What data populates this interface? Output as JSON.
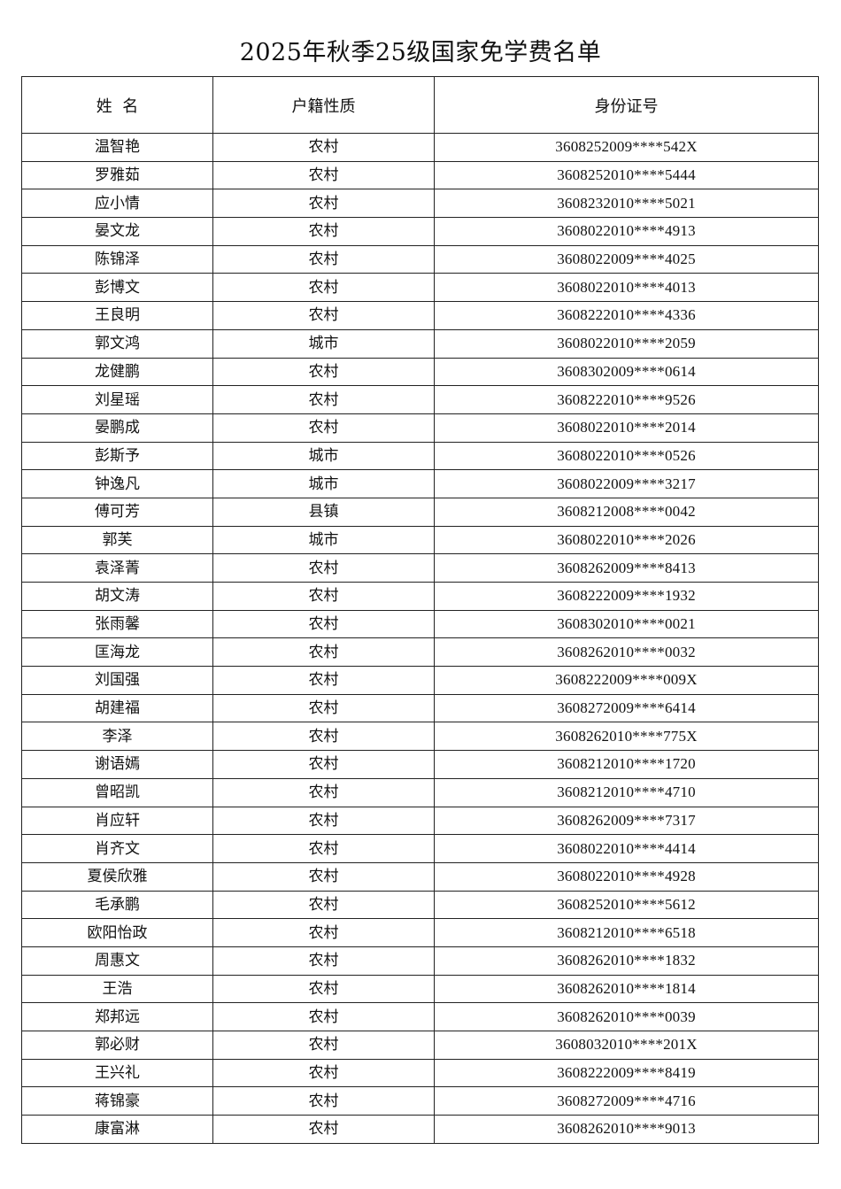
{
  "title": "2025年秋季25级国家免学费名单",
  "headers": [
    "姓  名",
    "户籍性质",
    "身份证号"
  ],
  "rows": [
    [
      "温智艳",
      "农村",
      "3608252009****542X"
    ],
    [
      "罗雅茹",
      "农村",
      "3608252010****5444"
    ],
    [
      "应小情",
      "农村",
      "3608232010****5021"
    ],
    [
      "晏文龙",
      "农村",
      "3608022010****4913"
    ],
    [
      "陈锦泽",
      "农村",
      "3608022009****4025"
    ],
    [
      "彭博文",
      "农村",
      "3608022010****4013"
    ],
    [
      "王良明",
      "农村",
      "3608222010****4336"
    ],
    [
      "郭文鸿",
      "城市",
      "3608022010****2059"
    ],
    [
      "龙健鹏",
      "农村",
      "3608302009****0614"
    ],
    [
      "刘星瑶",
      "农村",
      "3608222010****9526"
    ],
    [
      "晏鹏成",
      "农村",
      "3608022010****2014"
    ],
    [
      "彭斯予",
      "城市",
      "3608022010****0526"
    ],
    [
      "钟逸凡",
      "城市",
      "3608022009****3217"
    ],
    [
      "傅可芳",
      "县镇",
      "3608212008****0042"
    ],
    [
      "郭芙",
      "城市",
      "3608022010****2026"
    ],
    [
      "袁泽菁",
      "农村",
      "3608262009****8413"
    ],
    [
      "胡文涛",
      "农村",
      "3608222009****1932"
    ],
    [
      "张雨馨",
      "农村",
      "3608302010****0021"
    ],
    [
      "匡海龙",
      "农村",
      "3608262010****0032"
    ],
    [
      "刘国强",
      "农村",
      "3608222009****009X"
    ],
    [
      "胡建福",
      "农村",
      "3608272009****6414"
    ],
    [
      "李泽",
      "农村",
      "3608262010****775X"
    ],
    [
      "谢语嫣",
      "农村",
      "3608212010****1720"
    ],
    [
      "曾昭凯",
      "农村",
      "3608212010****4710"
    ],
    [
      "肖应轩",
      "农村",
      "3608262009****7317"
    ],
    [
      "肖齐文",
      "农村",
      "3608022010****4414"
    ],
    [
      "夏侯欣雅",
      "农村",
      "3608022010****4928"
    ],
    [
      "毛承鹏",
      "农村",
      "3608252010****5612"
    ],
    [
      "欧阳怡政",
      "农村",
      "3608212010****6518"
    ],
    [
      "周惠文",
      "农村",
      "3608262010****1832"
    ],
    [
      "王浩",
      "农村",
      "3608262010****1814"
    ],
    [
      "郑邦远",
      "农村",
      "3608262010****0039"
    ],
    [
      "郭必财",
      "农村",
      "3608032010****201X"
    ],
    [
      "王兴礼",
      "农村",
      "3608222009****8419"
    ],
    [
      "蒋锦豪",
      "农村",
      "3608272009****4716"
    ],
    [
      "康富淋",
      "农村",
      "3608262010****9013"
    ]
  ]
}
